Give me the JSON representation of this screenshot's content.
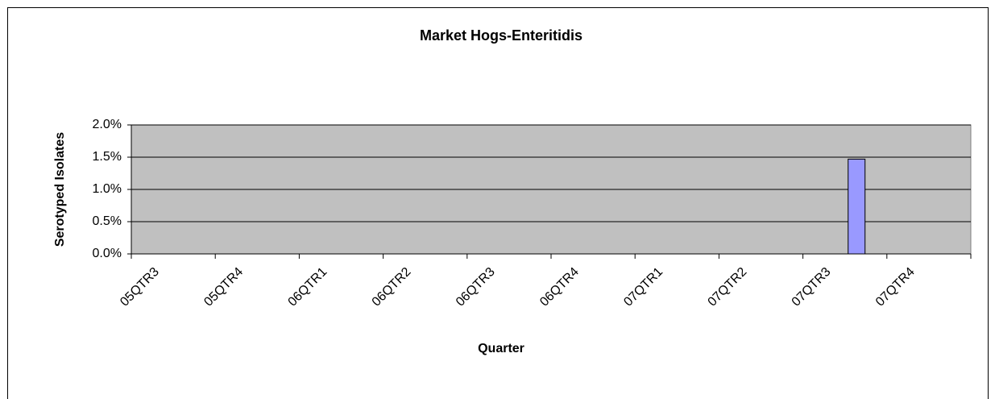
{
  "chart_data": {
    "type": "bar",
    "title": "Market Hogs-Enteritidis",
    "x_label": "Quarter",
    "y_label": "Serotyped Isolates",
    "categories": [
      "05QTR3",
      "05QTR4",
      "06QTR1",
      "06QTR2",
      "06QTR3",
      "06QTR4",
      "07QTR1",
      "07QTR2",
      "07QTR3",
      "07QTR4"
    ],
    "values": [
      0,
      0,
      0,
      0,
      0,
      0,
      0,
      0,
      1.47,
      0
    ],
    "color": "#9999ff",
    "ylim": [
      0,
      2
    ],
    "yticks": [
      {
        "value": 0,
        "label": "0.0%"
      },
      {
        "value": 0.5,
        "label": "0.5%"
      },
      {
        "value": 1,
        "label": "1.0%"
      },
      {
        "value": 1.5,
        "label": "1.5%"
      },
      {
        "value": 2,
        "label": "2.0%"
      }
    ],
    "grid": true
  }
}
